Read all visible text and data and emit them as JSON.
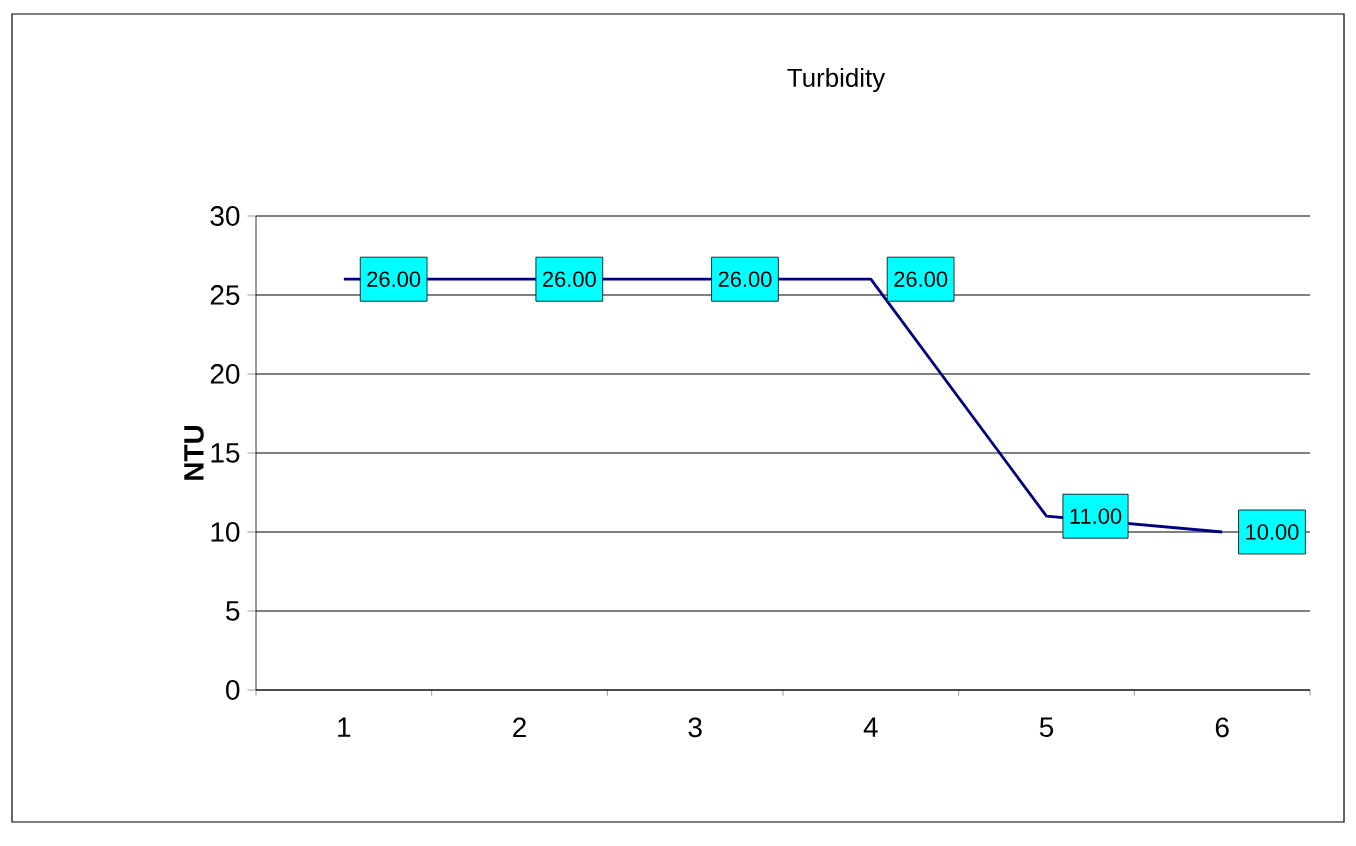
{
  "chart_data": {
    "type": "line",
    "title": "Turbidity",
    "ylabel": "NTU",
    "categories": [
      "1",
      "2",
      "3",
      "4",
      "5",
      "6"
    ],
    "series": [
      {
        "color": "#000080",
        "values": [
          26,
          26,
          26,
          26,
          11,
          10
        ],
        "value_labels": [
          "26.00",
          "26.00",
          "26.00",
          "26.00",
          "11.00",
          "10.00"
        ]
      }
    ],
    "ylim": [
      0,
      30
    ],
    "yticks": [
      0,
      5,
      10,
      15,
      20,
      25,
      30
    ],
    "grid": "y"
  }
}
